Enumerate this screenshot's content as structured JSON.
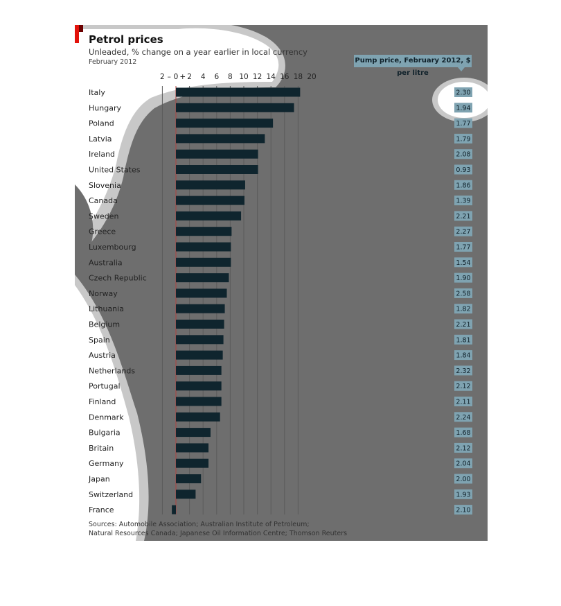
{
  "header": {
    "title": "Petrol prices",
    "subtitle": "Unleaded, % change on a year earlier in local currency",
    "date": "February 2012"
  },
  "pump_header": "Pump price, February 2012, $ per litre",
  "sources": {
    "line1": "Sources: Automobile Association; Australian Institute of Petroleum;",
    "line2": "Natural Resources Canada; Japanese Oil Information Centre; Thomson Reuters"
  },
  "colors": {
    "bar": "#0f252e",
    "pump_box": "#7fa3b1",
    "zero_line": "#b0413e",
    "accent": "#e3120b"
  },
  "chart_data": {
    "type": "bar",
    "orientation": "horizontal",
    "xlim": [
      -2,
      20
    ],
    "xticks": [
      {
        "value": -2,
        "label": "2"
      },
      {
        "value": -1,
        "label": "–"
      },
      {
        "value": 0,
        "label": "0"
      },
      {
        "value": 1,
        "label": "+"
      },
      {
        "value": 2,
        "label": "2"
      },
      {
        "value": 4,
        "label": "4"
      },
      {
        "value": 6,
        "label": "6"
      },
      {
        "value": 8,
        "label": "8"
      },
      {
        "value": 10,
        "label": "10"
      },
      {
        "value": 12,
        "label": "12"
      },
      {
        "value": 14,
        "label": "14"
      },
      {
        "value": 16,
        "label": "16"
      },
      {
        "value": 18,
        "label": "18"
      },
      {
        "value": 20,
        "label": "20"
      }
    ],
    "gridlines": [
      -2,
      2,
      4,
      6,
      8,
      10,
      12,
      14,
      16,
      18
    ],
    "categories": [
      "Italy",
      "Hungary",
      "Poland",
      "Latvia",
      "Ireland",
      "United States",
      "Slovenia",
      "Canada",
      "Sweden",
      "Greece",
      "Luxembourg",
      "Australia",
      "Czech Republic",
      "Norway",
      "Lithuania",
      "Belgium",
      "Spain",
      "Austria",
      "Netherlands",
      "Portugal",
      "Finland",
      "Denmark",
      "Bulgaria",
      "Britain",
      "Germany",
      "Japan",
      "Switzerland",
      "France"
    ],
    "values": [
      18.3,
      17.4,
      14.3,
      13.1,
      12.1,
      12.1,
      10.2,
      10.1,
      9.6,
      8.2,
      8.1,
      8.1,
      7.8,
      7.5,
      7.2,
      7.1,
      7.0,
      6.9,
      6.7,
      6.7,
      6.7,
      6.5,
      5.1,
      4.8,
      4.8,
      3.7,
      2.9,
      -0.6
    ],
    "pump_prices": [
      "2.30",
      "1.94",
      "1.77",
      "1.79",
      "2.08",
      "0.93",
      "1.86",
      "1.39",
      "2.21",
      "2.27",
      "1.77",
      "1.54",
      "1.90",
      "2.58",
      "1.82",
      "2.21",
      "1.81",
      "1.84",
      "2.32",
      "2.12",
      "2.11",
      "2.24",
      "1.68",
      "2.12",
      "2.04",
      "2.00",
      "1.93",
      "2.10"
    ],
    "grid": true
  }
}
